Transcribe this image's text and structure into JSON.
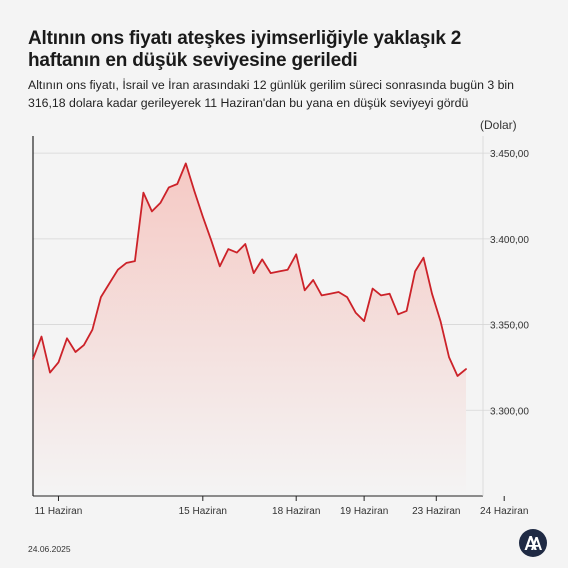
{
  "header": {
    "title": "Altının ons fiyatı ateşkes iyimserliğiyle yaklaşık 2 haftanın en düşük seviyesine geriledi",
    "subtitle": "Altının ons fiyatı, İsrail ve İran arasındaki 12 günlük gerilim süreci sonrasında bugün 3 bin 316,18 dolara kadar gerileyerek 11 Haziran'dan bu yana en düşük seviyeyi gördü"
  },
  "footer": {
    "date": "24.06.2025",
    "logo_icon": "aa-logo-icon"
  },
  "colors": {
    "line": "#cc2229",
    "fill_top": "#f5c9c4",
    "fill_bottom": "#f4f4f4",
    "grid": "#d6d6d6",
    "axis": "#222222"
  },
  "chart_data": {
    "type": "area",
    "ylabel": "(Dolar)",
    "ylim": [
      3250,
      3460
    ],
    "yticks": [
      3300,
      3350,
      3400,
      3450
    ],
    "ytick_labels": [
      "3.300,00",
      "3.350,00",
      "3.400,00",
      "3.450,00"
    ],
    "xlim": [
      0,
      62
    ],
    "xticks": [
      {
        "x": 3,
        "label": "11 Haziran"
      },
      {
        "x": 20,
        "label": "15 Haziran"
      },
      {
        "x": 31,
        "label": "18 Haziran"
      },
      {
        "x": 39,
        "label": "19 Haziran"
      },
      {
        "x": 47.5,
        "label": "23 Haziran"
      },
      {
        "x": 55.5,
        "label": "24 Haziran"
      }
    ],
    "grid": true,
    "series": [
      {
        "values": [
          [
            0,
            3330
          ],
          [
            1,
            3343
          ],
          [
            2,
            3322
          ],
          [
            3,
            3328
          ],
          [
            4,
            3342
          ],
          [
            5,
            3334
          ],
          [
            6,
            3338
          ],
          [
            7,
            3347
          ],
          [
            8,
            3366
          ],
          [
            9,
            3374
          ],
          [
            10,
            3382
          ],
          [
            11,
            3386
          ],
          [
            12,
            3387
          ],
          [
            13,
            3427
          ],
          [
            14,
            3416
          ],
          [
            15,
            3421
          ],
          [
            16,
            3430
          ],
          [
            17,
            3432
          ],
          [
            18,
            3444
          ],
          [
            19,
            3428
          ],
          [
            20,
            3413
          ],
          [
            21,
            3399
          ],
          [
            22,
            3384
          ],
          [
            23,
            3394
          ],
          [
            24,
            3392
          ],
          [
            25,
            3397
          ],
          [
            26,
            3380
          ],
          [
            27,
            3388
          ],
          [
            28,
            3380
          ],
          [
            29,
            3381
          ],
          [
            30,
            3382
          ],
          [
            31,
            3391
          ],
          [
            32,
            3370
          ],
          [
            33,
            3376
          ],
          [
            34,
            3367
          ],
          [
            35,
            3368
          ],
          [
            36,
            3369
          ],
          [
            37,
            3366
          ],
          [
            38,
            3357
          ],
          [
            39,
            3352
          ],
          [
            40,
            3371
          ],
          [
            41,
            3367
          ],
          [
            42,
            3368
          ],
          [
            43,
            3356
          ],
          [
            44,
            3358
          ],
          [
            45,
            3381
          ],
          [
            46,
            3389
          ],
          [
            47,
            3368
          ],
          [
            48,
            3352
          ],
          [
            49,
            3331
          ],
          [
            50,
            3320
          ],
          [
            51,
            3324
          ]
        ]
      }
    ]
  }
}
